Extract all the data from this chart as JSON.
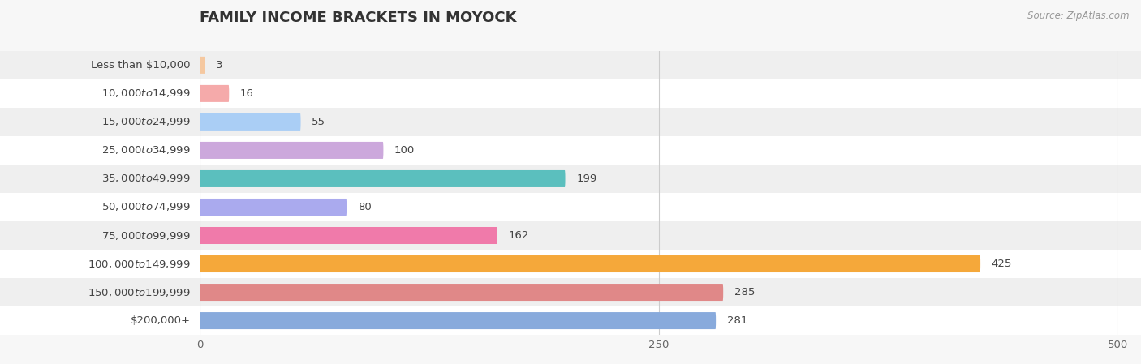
{
  "title": "FAMILY INCOME BRACKETS IN MOYOCK",
  "source": "Source: ZipAtlas.com",
  "categories": [
    "Less than $10,000",
    "$10,000 to $14,999",
    "$15,000 to $24,999",
    "$25,000 to $34,999",
    "$35,000 to $49,999",
    "$50,000 to $74,999",
    "$75,000 to $99,999",
    "$100,000 to $149,999",
    "$150,000 to $199,999",
    "$200,000+"
  ],
  "values": [
    3,
    16,
    55,
    100,
    199,
    80,
    162,
    425,
    285,
    281
  ],
  "bar_colors": [
    "#F5C8A0",
    "#F5AAAA",
    "#AACEF5",
    "#CCA8DC",
    "#5BBFBE",
    "#AAAAEE",
    "#F07AAA",
    "#F5A83A",
    "#E08888",
    "#88AADC"
  ],
  "background_color": "#f7f7f7",
  "xlim": [
    0,
    500
  ],
  "xticks": [
    0,
    250,
    500
  ],
  "title_fontsize": 13,
  "label_fontsize": 9.5,
  "value_fontsize": 9.5,
  "row_colors": [
    "#ffffff",
    "#efefef"
  ]
}
